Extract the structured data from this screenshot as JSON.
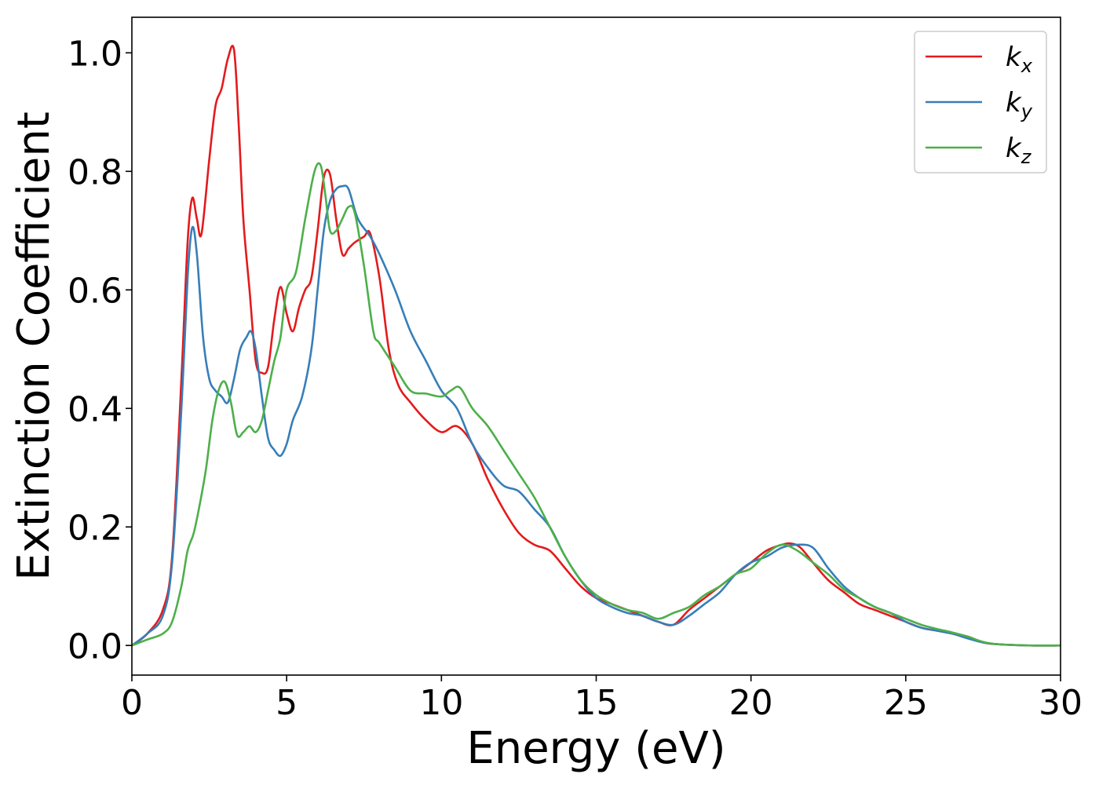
{
  "chart_data": {
    "type": "line",
    "title": "",
    "xlabel": "Energy (eV)",
    "ylabel": "Extinction Coefficient",
    "xlim": [
      0,
      30
    ],
    "ylim": [
      -0.05,
      1.06
    ],
    "xticks": [
      0,
      5,
      10,
      15,
      20,
      25,
      30
    ],
    "xtick_labels": [
      "0",
      "5",
      "10",
      "15",
      "20",
      "25",
      "30"
    ],
    "yticks": [
      0.0,
      0.2,
      0.4,
      0.6,
      0.8,
      1.0
    ],
    "ytick_labels": [
      "0.0",
      "0.2",
      "0.4",
      "0.6",
      "0.8",
      "1.0"
    ],
    "grid": false,
    "legend_position": "top-right",
    "series": [
      {
        "name": "k_x",
        "legend_base": "k",
        "legend_sub": "x",
        "color": "#e41a1c",
        "x": [
          0,
          0.5,
          1.0,
          1.3,
          1.6,
          1.8,
          1.95,
          2.1,
          2.25,
          2.5,
          2.7,
          2.9,
          3.1,
          3.3,
          3.45,
          3.6,
          3.8,
          4.0,
          4.2,
          4.4,
          4.6,
          4.8,
          5.0,
          5.2,
          5.4,
          5.6,
          5.8,
          6.0,
          6.2,
          6.4,
          6.6,
          6.8,
          7.0,
          7.2,
          7.5,
          7.7,
          8.0,
          8.3,
          8.6,
          9.0,
          9.5,
          10.0,
          10.5,
          11.0,
          11.5,
          12.0,
          12.5,
          13.0,
          13.5,
          14.0,
          14.5,
          15.0,
          15.5,
          16.0,
          16.5,
          17.0,
          17.5,
          18.0,
          18.5,
          19.0,
          19.5,
          20.0,
          20.5,
          21.0,
          21.3,
          21.6,
          22.0,
          22.5,
          23.0,
          23.5,
          24.0,
          24.5,
          25.0,
          25.5,
          26.0,
          26.5,
          27.0,
          27.5,
          28.0,
          29.0,
          30.0
        ],
        "values": [
          0.0,
          0.02,
          0.06,
          0.15,
          0.45,
          0.68,
          0.755,
          0.72,
          0.695,
          0.82,
          0.91,
          0.94,
          0.99,
          1.005,
          0.88,
          0.72,
          0.6,
          0.48,
          0.46,
          0.47,
          0.55,
          0.605,
          0.56,
          0.53,
          0.57,
          0.6,
          0.62,
          0.7,
          0.79,
          0.795,
          0.72,
          0.66,
          0.67,
          0.68,
          0.69,
          0.695,
          0.62,
          0.5,
          0.44,
          0.41,
          0.38,
          0.36,
          0.37,
          0.34,
          0.28,
          0.23,
          0.19,
          0.17,
          0.16,
          0.13,
          0.1,
          0.08,
          0.07,
          0.06,
          0.05,
          0.04,
          0.035,
          0.06,
          0.08,
          0.1,
          0.12,
          0.14,
          0.16,
          0.17,
          0.172,
          0.165,
          0.14,
          0.11,
          0.09,
          0.07,
          0.06,
          0.05,
          0.04,
          0.03,
          0.025,
          0.02,
          0.015,
          0.005,
          0.002,
          0.0,
          0.0
        ]
      },
      {
        "name": "k_y",
        "legend_base": "k",
        "legend_sub": "y",
        "color": "#377eb8",
        "x": [
          0,
          0.5,
          1.0,
          1.3,
          1.6,
          1.8,
          1.95,
          2.1,
          2.3,
          2.5,
          2.7,
          2.9,
          3.1,
          3.3,
          3.5,
          3.7,
          3.85,
          4.0,
          4.2,
          4.4,
          4.6,
          4.8,
          5.0,
          5.2,
          5.5,
          5.8,
          6.0,
          6.2,
          6.4,
          6.6,
          6.8,
          7.0,
          7.3,
          7.7,
          8.0,
          8.5,
          9.0,
          9.5,
          10.0,
          10.5,
          11.0,
          11.5,
          12.0,
          12.5,
          13.0,
          13.5,
          14.0,
          14.5,
          15.0,
          15.5,
          16.0,
          16.5,
          17.0,
          17.5,
          18.0,
          18.5,
          19.0,
          19.5,
          20.0,
          20.5,
          21.0,
          21.5,
          22.0,
          22.5,
          23.0,
          23.5,
          24.0,
          24.5,
          25.0,
          25.5,
          26.0,
          26.5,
          27.0,
          27.5,
          28.0,
          29.0,
          30.0
        ],
        "values": [
          0.0,
          0.02,
          0.05,
          0.14,
          0.4,
          0.62,
          0.705,
          0.66,
          0.52,
          0.45,
          0.43,
          0.42,
          0.41,
          0.45,
          0.5,
          0.52,
          0.53,
          0.5,
          0.42,
          0.35,
          0.33,
          0.32,
          0.34,
          0.38,
          0.42,
          0.5,
          0.6,
          0.7,
          0.75,
          0.77,
          0.775,
          0.77,
          0.72,
          0.69,
          0.66,
          0.6,
          0.53,
          0.48,
          0.43,
          0.4,
          0.34,
          0.3,
          0.27,
          0.26,
          0.23,
          0.2,
          0.15,
          0.11,
          0.08,
          0.065,
          0.055,
          0.05,
          0.04,
          0.035,
          0.05,
          0.07,
          0.09,
          0.12,
          0.14,
          0.15,
          0.165,
          0.17,
          0.165,
          0.13,
          0.1,
          0.08,
          0.065,
          0.055,
          0.04,
          0.03,
          0.025,
          0.02,
          0.012,
          0.005,
          0.002,
          0.0,
          0.0
        ]
      },
      {
        "name": "k_z",
        "legend_base": "k",
        "legend_sub": "z",
        "color": "#4daf4a",
        "x": [
          0,
          0.5,
          1.0,
          1.3,
          1.6,
          1.8,
          2.0,
          2.2,
          2.4,
          2.6,
          2.8,
          3.0,
          3.2,
          3.4,
          3.6,
          3.8,
          4.0,
          4.2,
          4.4,
          4.6,
          4.8,
          5.0,
          5.3,
          5.6,
          5.9,
          6.1,
          6.25,
          6.4,
          6.6,
          6.8,
          7.0,
          7.2,
          7.5,
          7.8,
          8.0,
          8.5,
          9.0,
          9.5,
          10.0,
          10.3,
          10.6,
          11.0,
          11.5,
          12.0,
          12.5,
          13.0,
          13.5,
          14.0,
          14.5,
          15.0,
          15.5,
          16.0,
          16.5,
          17.0,
          17.5,
          18.0,
          18.5,
          19.0,
          19.5,
          20.0,
          20.5,
          21.0,
          21.5,
          22.0,
          22.5,
          23.0,
          23.5,
          24.0,
          24.5,
          25.0,
          25.5,
          26.0,
          26.5,
          27.0,
          27.5,
          28.0,
          29.0,
          30.0
        ],
        "values": [
          0.0,
          0.01,
          0.02,
          0.04,
          0.1,
          0.16,
          0.19,
          0.24,
          0.3,
          0.38,
          0.43,
          0.445,
          0.41,
          0.355,
          0.36,
          0.37,
          0.36,
          0.38,
          0.43,
          0.48,
          0.52,
          0.6,
          0.63,
          0.72,
          0.8,
          0.81,
          0.76,
          0.7,
          0.7,
          0.72,
          0.74,
          0.73,
          0.64,
          0.53,
          0.51,
          0.47,
          0.43,
          0.425,
          0.42,
          0.43,
          0.435,
          0.4,
          0.37,
          0.33,
          0.29,
          0.25,
          0.2,
          0.15,
          0.11,
          0.085,
          0.07,
          0.06,
          0.055,
          0.045,
          0.055,
          0.065,
          0.085,
          0.1,
          0.12,
          0.13,
          0.155,
          0.17,
          0.16,
          0.14,
          0.12,
          0.095,
          0.08,
          0.065,
          0.055,
          0.045,
          0.035,
          0.028,
          0.022,
          0.015,
          0.006,
          0.002,
          0.0,
          0.0
        ]
      }
    ]
  }
}
